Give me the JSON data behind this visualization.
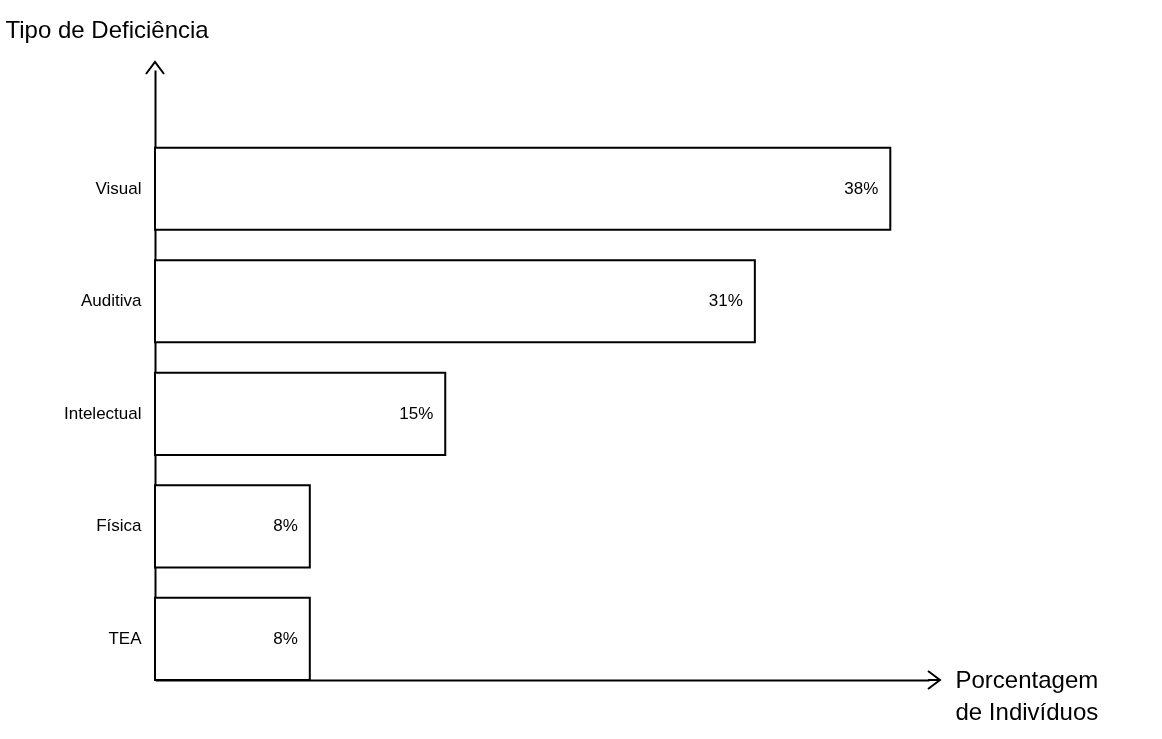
{
  "chart_data": {
    "type": "bar",
    "orientation": "horizontal",
    "xlabel": "Porcentagem de Indivíduos",
    "ylabel": "Tipo de Deficiência",
    "categories": [
      "Visual",
      "Auditiva",
      "Intelectual",
      "Física",
      "TEA"
    ],
    "values": [
      38,
      31,
      15,
      8,
      8
    ],
    "value_labels": [
      "38%",
      "31%",
      "15%",
      "8%",
      "8%"
    ],
    "color": "#ffffff",
    "xlim": [
      0,
      40
    ],
    "tick_labels": "y"
  }
}
